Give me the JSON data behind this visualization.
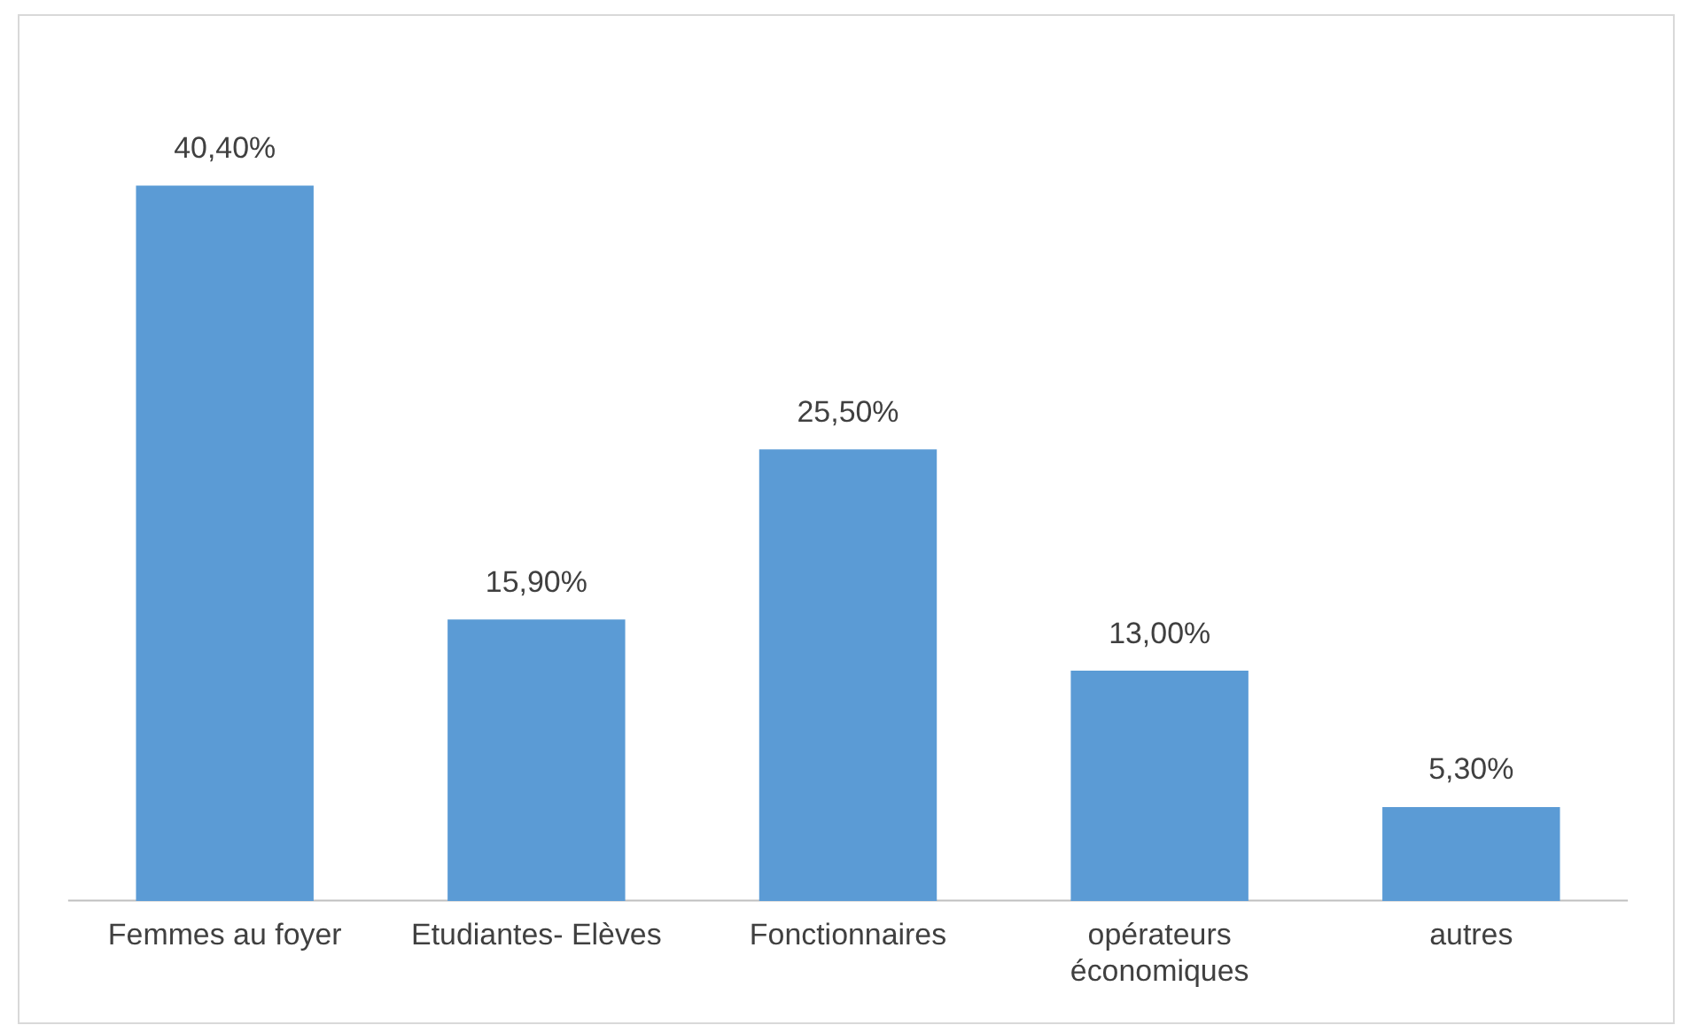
{
  "chart_data": {
    "type": "bar",
    "categories": [
      "Femmes au foyer",
      "Etudiantes- Elèves",
      "Fonctionnaires",
      "opérateurs économiques",
      "autres"
    ],
    "values": [
      40.4,
      15.9,
      25.5,
      13.0,
      5.3
    ],
    "value_labels": [
      "40,40%",
      "15,90%",
      "25,50%",
      "13,00%",
      "5,30%"
    ],
    "color": "#5b9bd5",
    "grid": false,
    "legend": false
  }
}
